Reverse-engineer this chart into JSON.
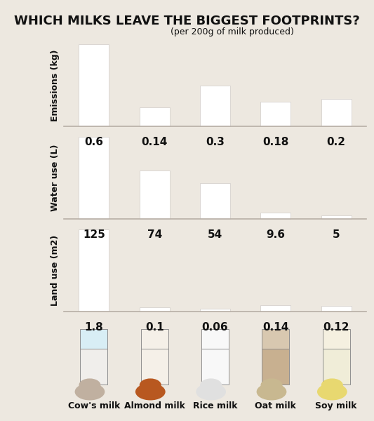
{
  "title": "WHICH MILKS LEAVE THE BIGGEST FOOTPRINTS?",
  "subtitle": "(per 200g of milk produced)",
  "bg_color": "#ede8e0",
  "bar_color": "#ffffff",
  "categories": [
    "Cow's milk",
    "Almond milk",
    "Rice milk",
    "Oat milk",
    "Soy milk"
  ],
  "emissions": [
    0.6,
    0.14,
    0.3,
    0.18,
    0.2
  ],
  "emissions_labels": [
    "0.6",
    "0.14",
    "0.3",
    "0.18",
    "0.2"
  ],
  "water_use": [
    125,
    74,
    54,
    9.6,
    5
  ],
  "water_labels": [
    "125",
    "74",
    "54",
    "9.6",
    "5"
  ],
  "land_use": [
    1.8,
    0.1,
    0.06,
    0.14,
    0.12
  ],
  "land_labels": [
    "1.8",
    "0.1",
    "0.06",
    "0.14",
    "0.12"
  ],
  "emissions_ylabel": "Emissions (kg)",
  "water_ylabel": "Water use (L)",
  "land_ylabel": "Land use (m2)",
  "text_color": "#111111",
  "separator_color": "#b8afa6",
  "glass_milk_colors": [
    "#f0eeeb",
    "#f5f0e8",
    "#f8f8f8",
    "#c8b090",
    "#f0edd8"
  ],
  "glass_top_colors": [
    "#d8eef5",
    "#f5f0e8",
    "#f8f8f8",
    "#d8c8b0",
    "#f5f0e0"
  ],
  "icon_colors": [
    "#c0b0a0",
    "#b85820",
    "#e0e0e0",
    "#c8b890",
    "#e8d870"
  ],
  "value_fontsize": 11,
  "ylabel_fontsize": 9,
  "cat_fontsize": 9
}
